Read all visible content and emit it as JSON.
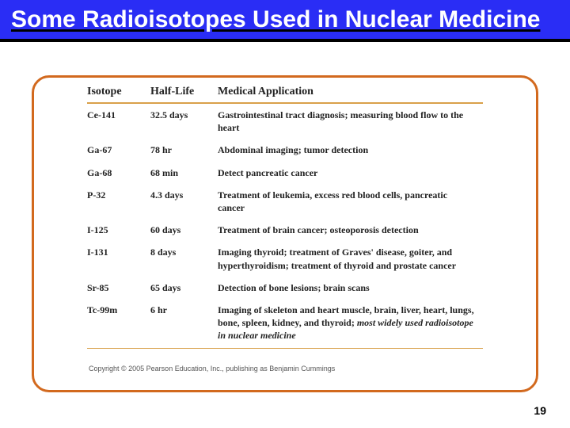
{
  "title": "Some Radioisotopes Used in Nuclear Medicine",
  "columns": {
    "c0": "Isotope",
    "c1": "Half-Life",
    "c2": "Medical Application"
  },
  "rows": [
    {
      "iso": "Ce-141",
      "half": "32.5 days",
      "app": "Gastrointestinal tract diagnosis; measuring blood flow to the heart",
      "tail": ""
    },
    {
      "iso": "Ga-67",
      "half": "78 hr",
      "app": "Abdominal imaging; tumor detection",
      "tail": ""
    },
    {
      "iso": "Ga-68",
      "half": "68 min",
      "app": "Detect pancreatic cancer",
      "tail": ""
    },
    {
      "iso": "P-32",
      "half": "4.3 days",
      "app": "Treatment of leukemia, excess red blood cells, pancreatic cancer",
      "tail": ""
    },
    {
      "iso": "I-125",
      "half": "60 days",
      "app": "Treatment of brain cancer; osteoporosis detection",
      "tail": ""
    },
    {
      "iso": "I-131",
      "half": "8 days",
      "app": "Imaging thyroid; treatment of Graves' disease, goiter, and hyperthyroidism; treatment of thyroid and prostate cancer",
      "tail": ""
    },
    {
      "iso": "Sr-85",
      "half": "65 days",
      "app": "Detection of bone lesions; brain scans",
      "tail": ""
    },
    {
      "iso": "Tc-99m",
      "half": "6 hr",
      "app": "Imaging of skeleton and heart muscle, brain, liver, heart, lungs, bone, spleen, kidney, and thyroid; ",
      "tail": "most widely used radioisotope in nuclear medicine"
    }
  ],
  "copyright": "Copyright © 2005 Pearson Education, Inc., publishing as Benjamin Cummings",
  "page": "19",
  "colors": {
    "title_bg": "#2a2df5",
    "title_underline": "#000000",
    "panel_border": "#d2691e",
    "rule": "#d9a04a",
    "text": "#222222"
  }
}
